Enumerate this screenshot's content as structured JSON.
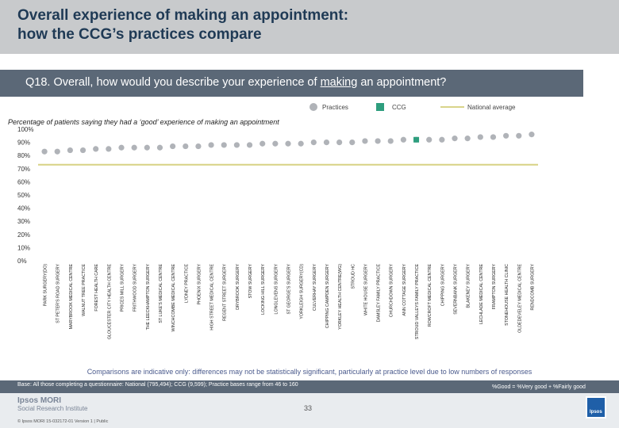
{
  "title": "Overall experience of making an appointment:\nhow the CCG’s practices compare",
  "question": {
    "before": "Q18. Overall, how would you describe your experience of ",
    "underlined": "making",
    "after": " an appointment?"
  },
  "legend": {
    "practices": "Practices",
    "ccg": "CCG",
    "national": "National average"
  },
  "colors": {
    "practice": "#b0b3b8",
    "ccg": "#2e9e7e",
    "national": "#d9d48a",
    "axis_text": "#222222",
    "tick_text": "#333333"
  },
  "footnote": "Comparisons are indicative only: differences may not be statistically significant, particularly at practice level due to low numbers of responses",
  "base_text": "Base: All those completing a questionnaire: National (795,494); CCG (9,599); Practice bases range from 46 to 160",
  "good_text": "%Good = %Very good + %Fairly good",
  "footer": {
    "logo_line1": "Ipsos MORI",
    "logo_line2": "Social Research Institute",
    "copyright": "© Ipsos MORI    15-032172-01 Version 1 | Public",
    "page": "33",
    "badge": "Ipsos"
  },
  "chart_data": {
    "type": "scatter",
    "subtitle": "Percentage of patients saying they had a ‘good’ experience of making an appointment",
    "y_ticks": [
      "100%",
      "90%",
      "80%",
      "70%",
      "60%",
      "50%",
      "40%",
      "30%",
      "20%",
      "10%",
      "0%"
    ],
    "ylim": [
      0,
      100
    ],
    "national_average": 73,
    "categories": [
      "PARK SURGERY(DO)",
      "ST PETER'S ROAD SURGERY",
      "MARYBROOK MEDICAL CENTRE",
      "WALNUT TREE PRACTICE",
      "FOREST HEALTH CARE",
      "GLOUCESTER CITY HEALTH CENTRE",
      "PRICES MILL SURGERY",
      "FRITHWOOD SURGERY",
      "THE LEECKHAMPTON SURGERY",
      "ST LUKE'S MEDICAL CENTRE",
      "WINCHCOMBE MEDICAL CENTRE",
      "LYDNEY PRACTICE",
      "PHOENIX SURGERY",
      "HIGH STREET MEDICAL CENTRE",
      "REGENT STREET SURGERY",
      "DRYBROOK SURGERY",
      "STOW SURGERY",
      "LOCKING HILL SURGERY",
      "LONGLEVENS SURGERY",
      "ST GEORGE'S SURGERY",
      "YORKLEIGH SURGERY(CD)",
      "CULVERHAY SURGERY",
      "CHIPPING CAMPDEN SURGERY",
      "YORKLEY HEALTH CENTRE(WG)",
      "STROUD HC",
      "WHITE HOUSE SURGERY",
      "DAMSLEY FAMILY PRACTICE",
      "CHURCHDOWN SURGERY",
      "ANN COTTAGE SURGERY",
      "STROUD VALLEYS FAMILY PRACTICE",
      "ROWCROFT MEDICAL CENTRE",
      "CHIPPING SURGERY",
      "SEVERNBANK SURGERY",
      "BLAKENEY SURGERY",
      "LECHLADE MEDICAL CENTRE",
      "FRAMPTON SURGERY",
      "STONEHOUSE HEALTH CLINIC",
      "OLDEDEVELEY MEDICAL CENTRE",
      "RENDCOMB SURGERY"
    ],
    "values": [
      83,
      83,
      84,
      84,
      85,
      85,
      86,
      86,
      86,
      86,
      87,
      87,
      87,
      88,
      88,
      88,
      88,
      89,
      89,
      89,
      89,
      90,
      90,
      90,
      90,
      91,
      91,
      91,
      92,
      92,
      92,
      92,
      93,
      93,
      94,
      94,
      95,
      95,
      96
    ],
    "highlight": {
      "category": "STROUD VALLEYS FAMILY PRACTICE",
      "series": "CCG",
      "value": 92
    }
  }
}
